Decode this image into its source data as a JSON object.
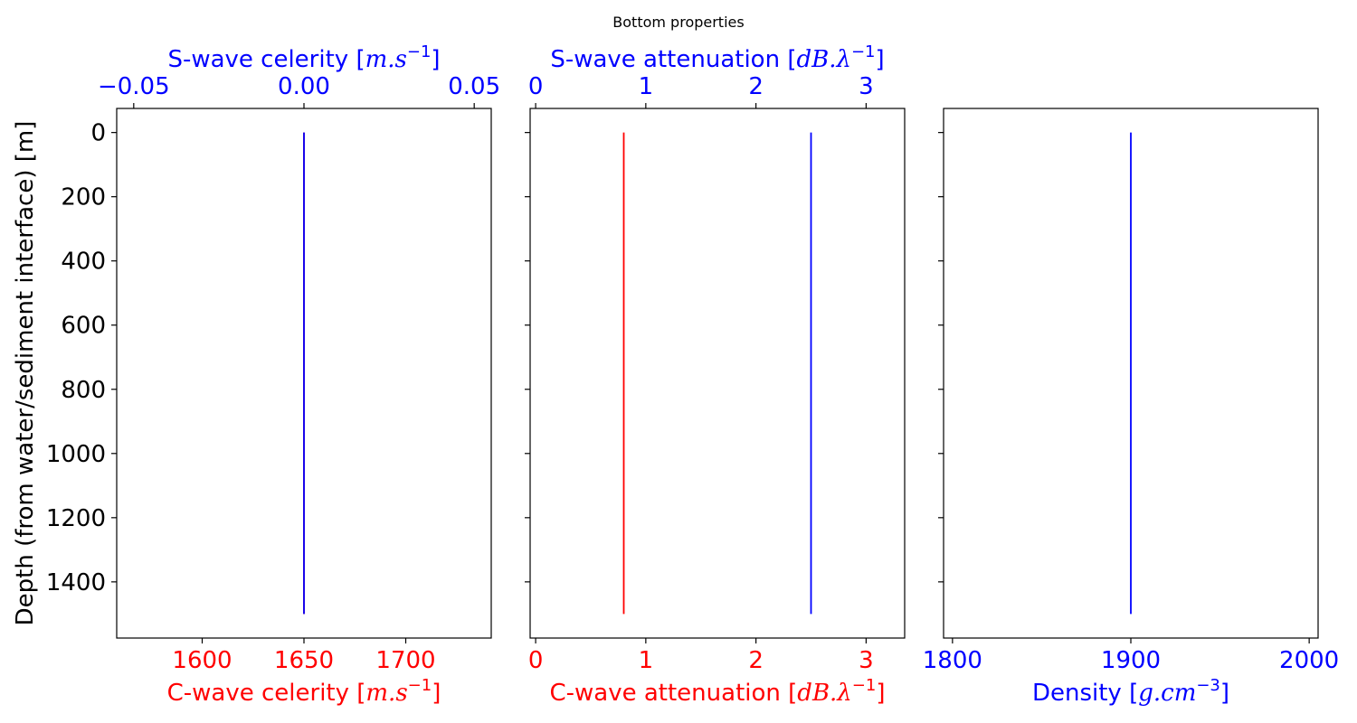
{
  "figure": {
    "suptitle": "Bottom properties",
    "ylabel": "Depth (from water/sediment interface) [m]"
  },
  "colors": {
    "red": "#ff0000",
    "blue": "#0000ff",
    "black": "#000000"
  },
  "chart_data": [
    {
      "type": "line",
      "id": "celerity",
      "ylim": [
        1575,
        -75
      ],
      "yticks": [
        0,
        200,
        400,
        600,
        800,
        1000,
        1200,
        1400
      ],
      "show_ytick_labels": true,
      "bottom_axis": {
        "label": "C-wave celerity",
        "unit_base": "m.s",
        "unit_exp": "−1",
        "color": "#ff0000",
        "lim": [
          1558,
          1742
        ],
        "ticks": [
          1600,
          1650,
          1700
        ],
        "tick_labels": [
          "1600",
          "1650",
          "1700"
        ]
      },
      "top_axis": {
        "label": "S-wave celerity",
        "unit_base": "m.s",
        "unit_exp": "−1",
        "color": "#0000ff",
        "lim": [
          -0.055,
          0.055
        ],
        "ticks": [
          -0.05,
          0.0,
          0.05
        ],
        "tick_labels": [
          "−0.05",
          "0.00",
          "0.05"
        ]
      },
      "series": [
        {
          "axis": "bottom",
          "color": "#ff0000",
          "x": [
            1650,
            1650
          ],
          "y": [
            0,
            1500
          ]
        },
        {
          "axis": "top",
          "color": "#0000ff",
          "x": [
            0.0,
            0.0
          ],
          "y": [
            0,
            1500
          ]
        }
      ]
    },
    {
      "type": "line",
      "id": "attenuation",
      "ylim": [
        1575,
        -75
      ],
      "yticks": [
        0,
        200,
        400,
        600,
        800,
        1000,
        1200,
        1400
      ],
      "show_ytick_labels": false,
      "bottom_axis": {
        "label": "C-wave attenuation",
        "unit_base": "dB.λ",
        "unit_exp": "−1",
        "color": "#ff0000",
        "lim": [
          -0.05,
          3.35
        ],
        "ticks": [
          0,
          1,
          2,
          3
        ],
        "tick_labels": [
          "0",
          "1",
          "2",
          "3"
        ]
      },
      "top_axis": {
        "label": "S-wave attenuation",
        "unit_base": "dB.λ",
        "unit_exp": "−1",
        "color": "#0000ff",
        "lim": [
          -0.05,
          3.35
        ],
        "ticks": [
          0,
          1,
          2,
          3
        ],
        "tick_labels": [
          "0",
          "1",
          "2",
          "3"
        ]
      },
      "series": [
        {
          "axis": "bottom",
          "color": "#ff0000",
          "x": [
            0.8,
            0.8
          ],
          "y": [
            0,
            1500
          ]
        },
        {
          "axis": "top",
          "color": "#0000ff",
          "x": [
            2.5,
            2.5
          ],
          "y": [
            0,
            1500
          ]
        }
      ]
    },
    {
      "type": "line",
      "id": "density",
      "ylim": [
        1575,
        -75
      ],
      "yticks": [
        0,
        200,
        400,
        600,
        800,
        1000,
        1200,
        1400
      ],
      "show_ytick_labels": false,
      "bottom_axis": {
        "label": "Density",
        "unit_base": "g.cm",
        "unit_exp": "−3",
        "color": "#0000ff",
        "lim": [
          1795,
          2005
        ],
        "ticks": [
          1800,
          1900,
          2000
        ],
        "tick_labels": [
          "1800",
          "1900",
          "2000"
        ]
      },
      "series": [
        {
          "axis": "bottom",
          "color": "#0000ff",
          "x": [
            1900,
            1900
          ],
          "y": [
            0,
            1500
          ]
        }
      ]
    }
  ]
}
